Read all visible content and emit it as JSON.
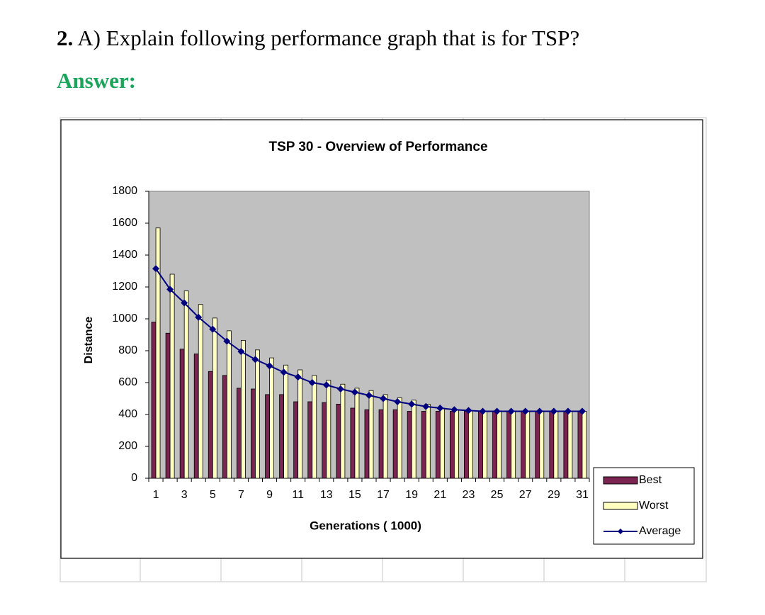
{
  "question": {
    "number": "2.",
    "text": "A) Explain following performance graph that is for TSP?"
  },
  "answer_label": "Answer:",
  "chart_data": {
    "type": "bar",
    "title": "TSP 30 - Overview of Performance",
    "x_label": "Generations ( 1000)",
    "y_label": "Distance",
    "categories": [
      1,
      null,
      3,
      null,
      5,
      null,
      7,
      null,
      9,
      null,
      11,
      null,
      13,
      null,
      15,
      null,
      17,
      null,
      19,
      null,
      21,
      null,
      23,
      null,
      25,
      null,
      27,
      null,
      29,
      null,
      31
    ],
    "series": [
      {
        "name": "Best",
        "type": "bar",
        "color": "#7b2351",
        "values": [
          980,
          910,
          810,
          780,
          670,
          645,
          565,
          560,
          525,
          525,
          480,
          480,
          475,
          465,
          440,
          430,
          430,
          430,
          420,
          420,
          420,
          420,
          420,
          420,
          420,
          420,
          420,
          420,
          420,
          420,
          420
        ]
      },
      {
        "name": "Worst",
        "type": "bar",
        "color": "#ffffc0",
        "values": [
          1570,
          1280,
          1175,
          1090,
          1005,
          925,
          865,
          805,
          755,
          710,
          680,
          645,
          615,
          590,
          565,
          550,
          525,
          505,
          490,
          465,
          440,
          430,
          425,
          420,
          420,
          420,
          420,
          420,
          420,
          420,
          420
        ]
      },
      {
        "name": "Average",
        "type": "line",
        "color": "#000080",
        "values": [
          1315,
          1185,
          1100,
          1010,
          935,
          860,
          795,
          745,
          705,
          665,
          635,
          600,
          585,
          560,
          540,
          520,
          500,
          480,
          465,
          450,
          440,
          430,
          425,
          420,
          420,
          420,
          420,
          420,
          420,
          420,
          420
        ]
      }
    ],
    "ylim": [
      0,
      1800
    ],
    "yticks": [
      0,
      200,
      400,
      600,
      800,
      1000,
      1200,
      1400,
      1600,
      1800
    ],
    "plot_background": "#c0c0c0",
    "legend": "lower right"
  }
}
